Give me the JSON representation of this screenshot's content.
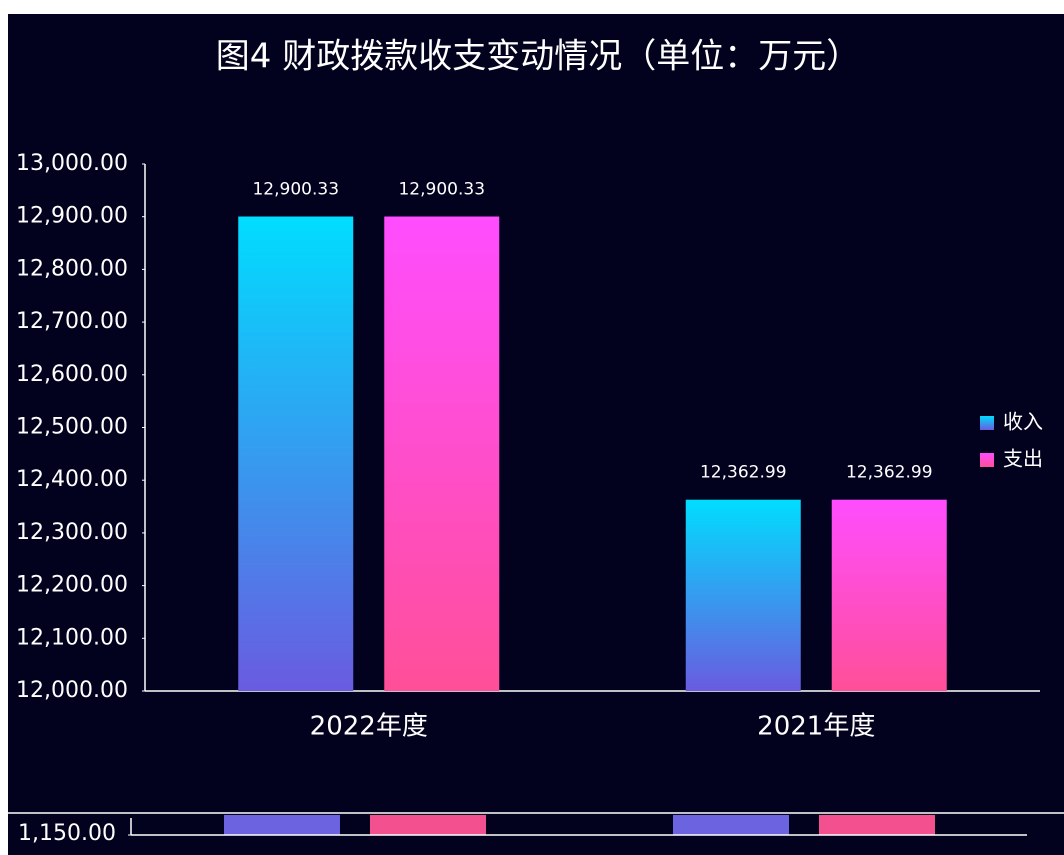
{
  "chart_data": [
    {
      "type": "bar",
      "title": "图4 财政拨款收支变动情况（单位：万元）",
      "categories": [
        "2022年度",
        "2021年度"
      ],
      "series": [
        {
          "name": "收入",
          "color": [
            "#00ddff",
            "#6a5be0"
          ],
          "values": [
            12900.33,
            12362.99
          ],
          "value_labels": [
            "12,900.33",
            "12,362.99"
          ]
        },
        {
          "name": "支出",
          "color": [
            "#ff4dff",
            "#ff4f98"
          ],
          "values": [
            12900.33,
            12362.99
          ],
          "value_labels": [
            "12,900.33",
            "12,362.99"
          ]
        }
      ],
      "ylim": [
        12000,
        13000
      ],
      "yticks": [
        {
          "value": 12000,
          "label": "12,000.00"
        },
        {
          "value": 12100,
          "label": "12,100.00"
        },
        {
          "value": 12200,
          "label": "12,200.00"
        },
        {
          "value": 12300,
          "label": "12,300.00"
        },
        {
          "value": 12400,
          "label": "12,400.00"
        },
        {
          "value": 12500,
          "label": "12,500.00"
        },
        {
          "value": 12600,
          "label": "12,600.00"
        },
        {
          "value": 12700,
          "label": "12,700.00"
        },
        {
          "value": 12800,
          "label": "12,800.00"
        },
        {
          "value": 12900,
          "label": "12,900.00"
        },
        {
          "value": 13000,
          "label": "13,000.00"
        }
      ],
      "legend": "right"
    },
    {
      "type": "bar",
      "yticks": [
        {
          "value": 1150,
          "label": "1,150.00"
        }
      ]
    }
  ]
}
